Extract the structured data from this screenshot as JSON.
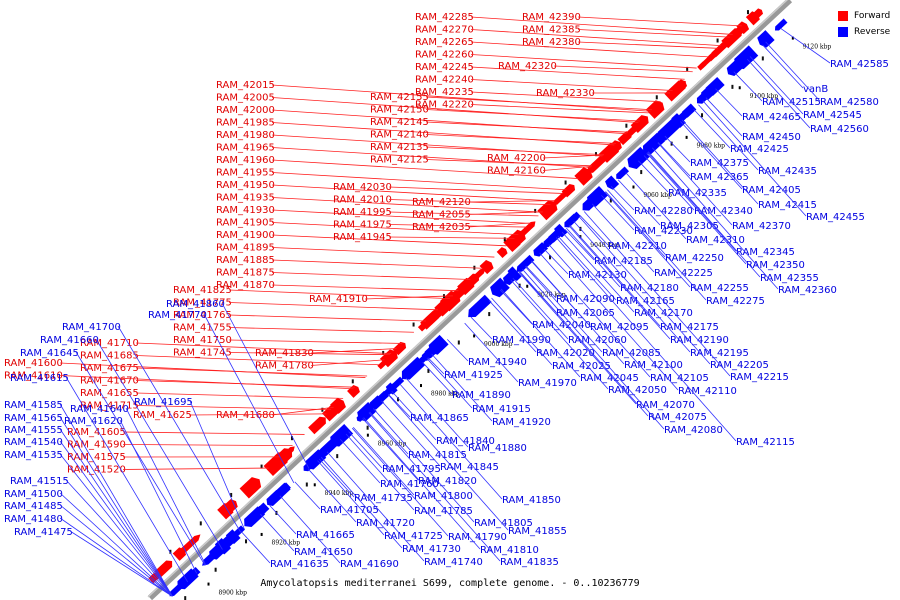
{
  "caption": "Amycolatopsis mediterranei S699, complete genome. - 0..10236779",
  "legend": {
    "forward_label": "Forward",
    "reverse_label": "Reverse",
    "forward_color": "#ff0000",
    "reverse_color": "#0000ff"
  },
  "colors": {
    "forward_text": "#e00000",
    "reverse_text": "#0000e0",
    "backbone": "#999999"
  },
  "kbp_ticks": [
    "8900 kbp",
    "8920 kbp",
    "8940 kbp",
    "8960 kbp",
    "8980 kbp",
    "9000 kbp",
    "9020 kbp",
    "9040 kbp",
    "9060 kbp",
    "9080 kbp",
    "9100 kbp",
    "9120 kbp"
  ],
  "forward_labels": [
    "RAM_42285",
    "RAM_42270",
    "RAM_42265",
    "RAM_42260",
    "RAM_42245",
    "RAM_42240",
    "RAM_42235",
    "RAM_42220",
    "RAM_42390",
    "RAM_42385",
    "RAM_42380",
    "RAM_42320",
    "RAM_42330",
    "RAM_42015",
    "RAM_42005",
    "RAM_42000",
    "RAM_41985",
    "RAM_41980",
    "RAM_41965",
    "RAM_41960",
    "RAM_41955",
    "RAM_41950",
    "RAM_41935",
    "RAM_41930",
    "RAM_41905",
    "RAM_41900",
    "RAM_41895",
    "RAM_41885",
    "RAM_41875",
    "RAM_41870",
    "RAM_42155",
    "RAM_42150",
    "RAM_42145",
    "RAM_42140",
    "RAM_42135",
    "RAM_42125",
    "RAM_42200",
    "RAM_42160",
    "RAM_42030",
    "RAM_42010",
    "RAM_41995",
    "RAM_41975",
    "RAM_41945",
    "RAM_42120",
    "RAM_42055",
    "RAM_42035",
    "RAM_41910",
    "RAM_41825",
    "RAM_41775",
    "RAM_41765",
    "RAM_41755",
    "RAM_41750",
    "RAM_41745",
    "RAM_41830",
    "RAM_41780",
    "RAM_41710",
    "RAM_41685",
    "RAM_41675",
    "RAM_41670",
    "RAM_41655",
    "RAM_41715",
    "RAM_41680",
    "RAM_41625",
    "RAM_41600",
    "RAM_41610",
    "RAM_41605",
    "RAM_41590",
    "RAM_41575",
    "RAM_41520"
  ],
  "reverse_labels": [
    "vanB",
    "RAM_42585",
    "RAM_42515",
    "RAM_42580",
    "RAM_42465",
    "RAM_42545",
    "RAM_42560",
    "RAM_42450",
    "RAM_42425",
    "RAM_42375",
    "RAM_42435",
    "RAM_42365",
    "RAM_42335",
    "RAM_42405",
    "RAM_42415",
    "RAM_42280",
    "RAM_42340",
    "RAM_42455",
    "RAM_42305",
    "RAM_42370",
    "RAM_42230",
    "RAM_42310",
    "RAM_42210",
    "RAM_42345",
    "RAM_42185",
    "RAM_42250",
    "RAM_42350",
    "RAM_42130",
    "RAM_42225",
    "RAM_42355",
    "RAM_42180",
    "RAM_42255",
    "RAM_42360",
    "RAM_42165",
    "RAM_42275",
    "RAM_42090",
    "RAM_42065",
    "RAM_42170",
    "RAM_42095",
    "RAM_42175",
    "RAM_42040",
    "RAM_41990",
    "RAM_42060",
    "RAM_42190",
    "RAM_42020",
    "RAM_42085",
    "RAM_42195",
    "RAM_41940",
    "RAM_42025",
    "RAM_42100",
    "RAM_42205",
    "RAM_41925",
    "RAM_41970",
    "RAM_42045",
    "RAM_42105",
    "RAM_42215",
    "RAM_42050",
    "RAM_42110",
    "RAM_41890",
    "RAM_42070",
    "RAM_41915",
    "RAM_42075",
    "RAM_41920",
    "RAM_42080",
    "RAM_42115",
    "RAM_41865",
    "RAM_41840",
    "RAM_41880",
    "RAM_41815",
    "RAM_41845",
    "RAM_41795",
    "RAM_41820",
    "RAM_41760",
    "RAM_41735",
    "RAM_41800",
    "RAM_41850",
    "RAM_41705",
    "RAM_41785",
    "RAM_41720",
    "RAM_41805",
    "RAM_41855",
    "RAM_41725",
    "RAM_41790",
    "RAM_41665",
    "RAM_41730",
    "RAM_41810",
    "RAM_41650",
    "RAM_41740",
    "RAM_41835",
    "RAM_41635",
    "RAM_41690",
    "RAM_41860",
    "RAM_41700",
    "RAM_41660",
    "RAM_41645",
    "RAM_41615",
    "RAM_41770",
    "RAM_41695",
    "RAM_41585",
    "RAM_41640",
    "RAM_41565",
    "RAM_41620",
    "RAM_41555",
    "RAM_41540",
    "RAM_41535",
    "RAM_41515",
    "RAM_41500",
    "RAM_41485",
    "RAM_41480",
    "RAM_41475"
  ]
}
